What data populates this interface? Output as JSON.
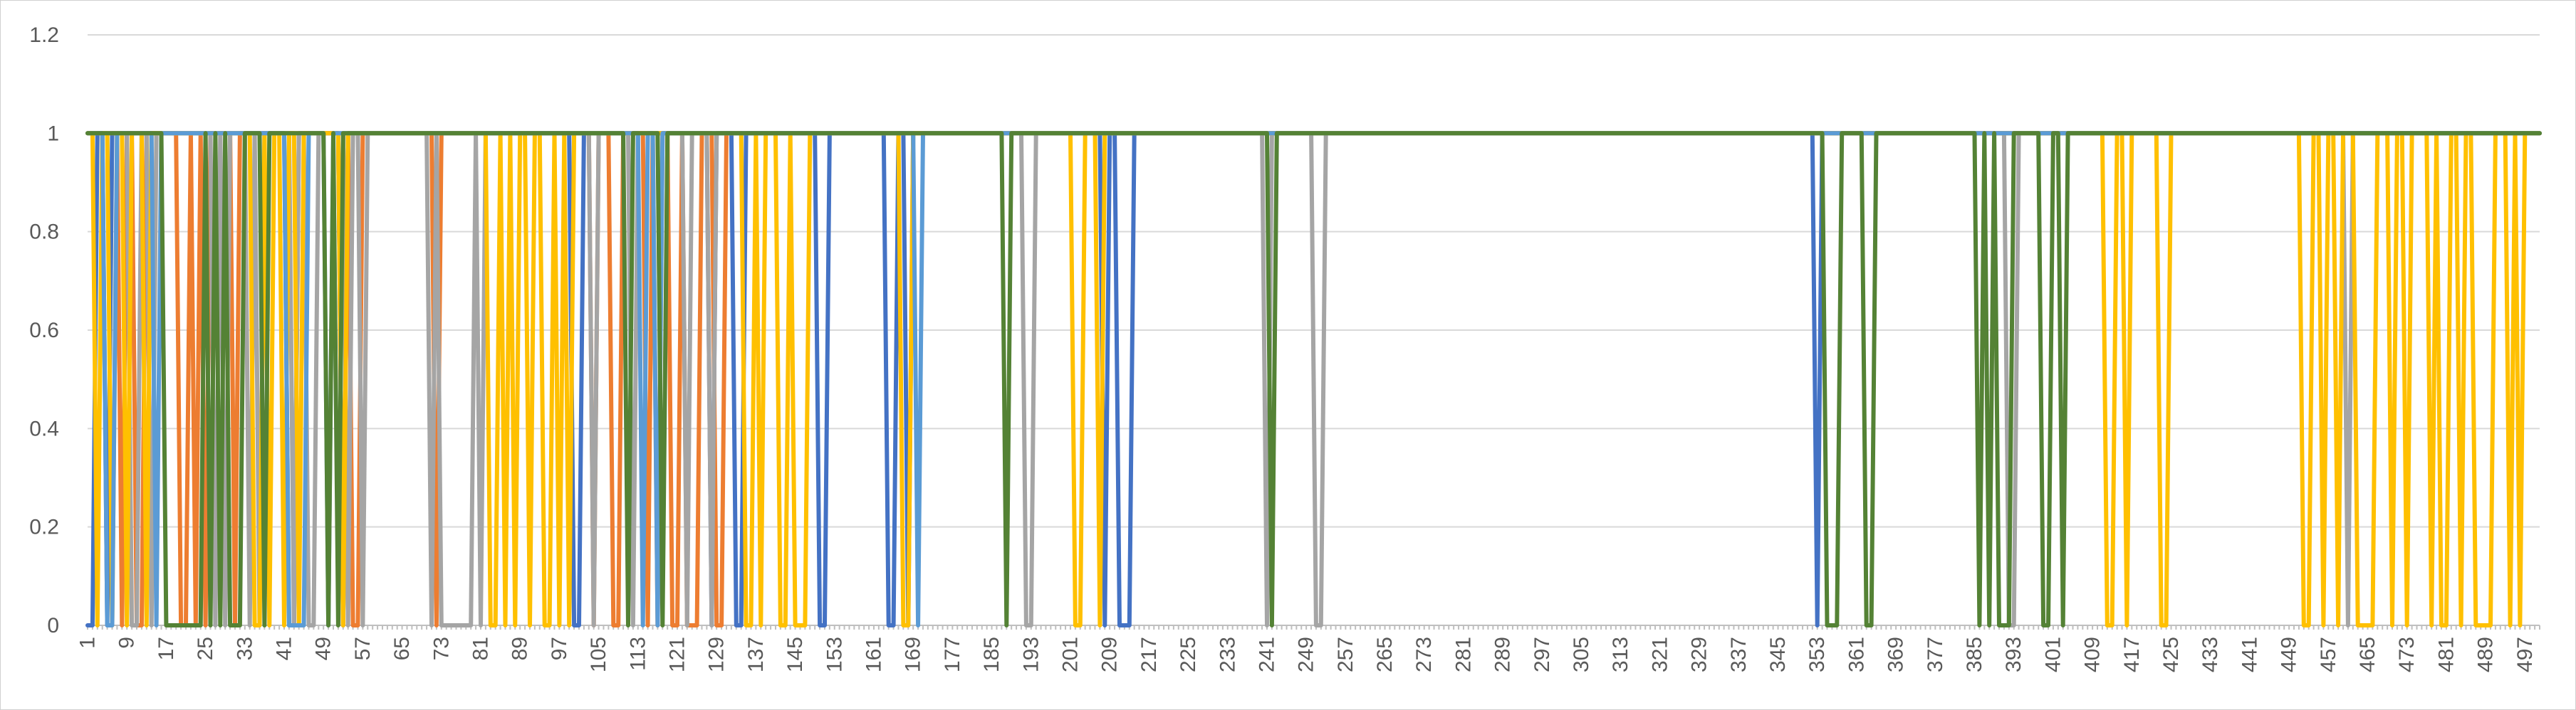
{
  "chart_data": {
    "type": "line",
    "title": "",
    "xlabel": "",
    "ylabel": "",
    "x_range": [
      1,
      500
    ],
    "ylim": [
      0,
      1.2
    ],
    "y_ticks": [
      "0",
      "0.2",
      "0.4",
      "0.6",
      "0.8",
      "1",
      "1.2"
    ],
    "x_tick_labels": [
      "1",
      "9",
      "17",
      "25",
      "33",
      "41",
      "49",
      "57",
      "65",
      "73",
      "81",
      "89",
      "97",
      "105",
      "113",
      "121",
      "129",
      "137",
      "145",
      "153",
      "161",
      "169",
      "177",
      "185",
      "193",
      "201",
      "209",
      "217",
      "225",
      "233",
      "241",
      "249",
      "257",
      "265",
      "273",
      "281",
      "289",
      "297",
      "305",
      "313",
      "321",
      "329",
      "337",
      "345",
      "353",
      "361",
      "369",
      "377",
      "385",
      "393",
      "401",
      "409",
      "417",
      "425",
      "433",
      "441",
      "449",
      "457",
      "465",
      "473",
      "481",
      "489",
      "497"
    ],
    "grid": true,
    "legend": "none",
    "series_colors": [
      "#4472C4",
      "#ED7D31",
      "#A5A5A5",
      "#FFC000",
      "#5B9BD5",
      "#548235"
    ],
    "series": [
      {
        "color": "#4472C4",
        "zero_runs": [
          [
            1,
            2
          ],
          [
            5,
            5
          ],
          [
            42,
            43
          ],
          [
            53,
            53
          ],
          [
            100,
            101
          ],
          [
            128,
            128
          ],
          [
            133,
            134
          ],
          [
            150,
            151
          ],
          [
            164,
            165
          ],
          [
            168,
            168
          ],
          [
            208,
            208
          ],
          [
            211,
            213
          ],
          [
            353,
            353
          ]
        ]
      },
      {
        "color": "#ED7D31",
        "zero_runs": [
          [
            8,
            8
          ],
          [
            11,
            12
          ],
          [
            20,
            21
          ],
          [
            23,
            23
          ],
          [
            25,
            25
          ],
          [
            31,
            31
          ],
          [
            53,
            53
          ],
          [
            55,
            56
          ],
          [
            72,
            72
          ],
          [
            104,
            104
          ],
          [
            108,
            109
          ],
          [
            115,
            115
          ],
          [
            117,
            117
          ],
          [
            120,
            121
          ],
          [
            123,
            125
          ],
          [
            129,
            130
          ]
        ]
      },
      {
        "color": "#A5A5A5",
        "zero_runs": [
          [
            10,
            11
          ],
          [
            14,
            14
          ],
          [
            27,
            27
          ],
          [
            29,
            29
          ],
          [
            34,
            34
          ],
          [
            36,
            36
          ],
          [
            43,
            43
          ],
          [
            46,
            47
          ],
          [
            54,
            54
          ],
          [
            57,
            57
          ],
          [
            71,
            71
          ],
          [
            73,
            79
          ],
          [
            81,
            81
          ],
          [
            104,
            104
          ],
          [
            112,
            112
          ],
          [
            123,
            123
          ],
          [
            128,
            128
          ],
          [
            192,
            193
          ],
          [
            241,
            241
          ],
          [
            251,
            252
          ],
          [
            392,
            393
          ],
          [
            461,
            461
          ]
        ]
      },
      {
        "color": "#FFC000",
        "zero_runs": [
          [
            3,
            3
          ],
          [
            6,
            6
          ],
          [
            9,
            9
          ],
          [
            13,
            13
          ],
          [
            35,
            36
          ],
          [
            38,
            38
          ],
          [
            41,
            41
          ],
          [
            44,
            44
          ],
          [
            53,
            53
          ],
          [
            83,
            84
          ],
          [
            86,
            86
          ],
          [
            88,
            88
          ],
          [
            91,
            91
          ],
          [
            94,
            95
          ],
          [
            97,
            97
          ],
          [
            99,
            99
          ],
          [
            135,
            136
          ],
          [
            138,
            138
          ],
          [
            142,
            143
          ],
          [
            145,
            147
          ],
          [
            167,
            168
          ],
          [
            202,
            203
          ],
          [
            207,
            207
          ],
          [
            412,
            413
          ],
          [
            416,
            416
          ],
          [
            423,
            424
          ],
          [
            452,
            453
          ],
          [
            456,
            456
          ],
          [
            459,
            459
          ],
          [
            463,
            466
          ],
          [
            470,
            470
          ],
          [
            473,
            473
          ],
          [
            478,
            478
          ],
          [
            480,
            481
          ],
          [
            484,
            484
          ],
          [
            487,
            490
          ],
          [
            494,
            494
          ],
          [
            496,
            496
          ]
        ]
      },
      {
        "color": "#5B9BD5",
        "zero_runs": [
          [
            5,
            6
          ],
          [
            15,
            15
          ],
          [
            42,
            45
          ],
          [
            50,
            50
          ],
          [
            114,
            114
          ],
          [
            117,
            117
          ],
          [
            170,
            170
          ]
        ]
      },
      {
        "color": "#548235",
        "zero_runs": [
          [
            17,
            24
          ],
          [
            26,
            26
          ],
          [
            28,
            28
          ],
          [
            30,
            32
          ],
          [
            37,
            37
          ],
          [
            50,
            50
          ],
          [
            52,
            52
          ],
          [
            111,
            111
          ],
          [
            118,
            118
          ],
          [
            188,
            188
          ],
          [
            242,
            242
          ],
          [
            355,
            357
          ],
          [
            363,
            364
          ],
          [
            386,
            386
          ],
          [
            388,
            388
          ],
          [
            390,
            392
          ],
          [
            399,
            400
          ],
          [
            403,
            403
          ]
        ]
      }
    ]
  }
}
